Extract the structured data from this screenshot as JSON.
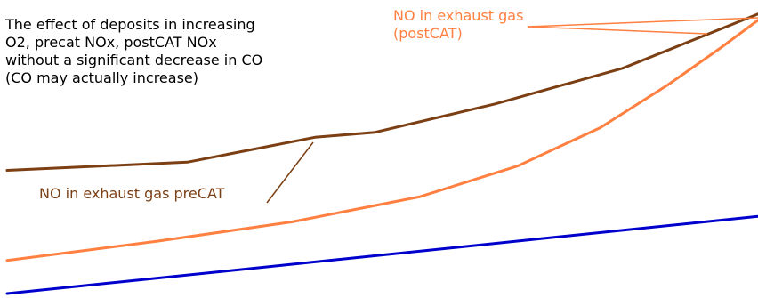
{
  "chart_data": {
    "type": "line",
    "x_range": [
      0,
      1
    ],
    "y_range": [
      0,
      1
    ],
    "series": [
      {
        "name": "NO in exhaust gas preCAT",
        "color": "#7b3f13",
        "points": [
          [
            0.0,
            0.424
          ],
          [
            0.24,
            0.452
          ],
          [
            0.41,
            0.537
          ],
          [
            0.49,
            0.554
          ],
          [
            0.65,
            0.651
          ],
          [
            0.82,
            0.773
          ],
          [
            1.0,
            0.958
          ]
        ]
      },
      {
        "name": "NO in exhaust gas (postCAT)",
        "color": "#ff8040",
        "points": [
          [
            0.0,
            0.116
          ],
          [
            0.2,
            0.182
          ],
          [
            0.38,
            0.248
          ],
          [
            0.55,
            0.334
          ],
          [
            0.68,
            0.439
          ],
          [
            0.79,
            0.57
          ],
          [
            0.88,
            0.716
          ],
          [
            0.95,
            0.842
          ],
          [
            1.0,
            0.937
          ]
        ]
      },
      {
        "name": "",
        "color": "#0000cc",
        "points": [
          [
            0.0,
            0.003
          ],
          [
            1.0,
            0.267
          ]
        ]
      }
    ],
    "annotations": {
      "note": "The effect of deposits in increasing\nO2, precat NOx, postCAT NOx\nwithout a significant decrease in CO\n(CO may actually increase)",
      "precat_label": "NO in exhaust gas preCAT",
      "postcat_label": "NO in exhaust gas\n(postCAT)"
    }
  }
}
